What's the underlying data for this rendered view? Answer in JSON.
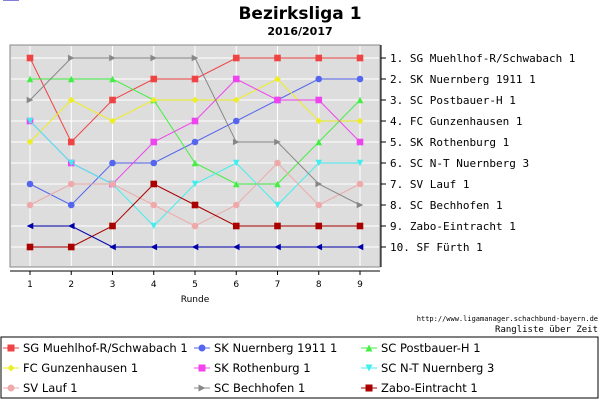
{
  "chart_data": {
    "type": "line",
    "title": "Bezirksliga 1",
    "subtitle": "2016/2017",
    "xlabel": "Runde",
    "ylabel": "",
    "x": [
      1,
      2,
      3,
      4,
      5,
      6,
      7,
      8,
      9
    ],
    "ylim": [
      10,
      1
    ],
    "grid": true,
    "legend_position": "bottom",
    "y_tick_labels": [
      "1. SG Muehlhof-R/Schwabach 1",
      "2. SK Nuernberg 1911 1",
      "3. SC Postbauer-H 1",
      "4. FC Gunzenhausen 1",
      "5. SK Rothenburg 1",
      "6. SC N-T Nuernberg 3",
      "7. SV Lauf 1",
      "8. SC Bechhofen 1",
      "9. Zabo-Eintracht 1",
      "10. SF Fürth 1"
    ],
    "series": [
      {
        "name": "SG Muehlhof-R/Schwabach 1",
        "color": "#ee4444",
        "marker": "square",
        "values": [
          1,
          5,
          3,
          2,
          2,
          1,
          1,
          1,
          1
        ]
      },
      {
        "name": "SK Nuernberg 1911 1",
        "color": "#5566ee",
        "marker": "circle",
        "values": [
          7,
          8,
          6,
          6,
          5,
          4,
          3,
          2,
          2
        ]
      },
      {
        "name": "SC Postbauer-H 1",
        "color": "#44ee44",
        "marker": "triangle-up",
        "values": [
          2,
          2,
          2,
          3,
          6,
          7,
          7,
          5,
          3
        ]
      },
      {
        "name": "FC Gunzenhausen 1",
        "color": "#eeee22",
        "marker": "diamond",
        "values": [
          5,
          3,
          4,
          3,
          3,
          3,
          2,
          4,
          4
        ]
      },
      {
        "name": "SK Rothenburg 1",
        "color": "#ee44ee",
        "marker": "square",
        "values": [
          4,
          6,
          7,
          5,
          4,
          2,
          3,
          3,
          5
        ]
      },
      {
        "name": "SC N-T Nuernberg 3",
        "color": "#44eeee",
        "marker": "triangle-down",
        "values": [
          4,
          6,
          7,
          9,
          7,
          6,
          8,
          6,
          6
        ]
      },
      {
        "name": "SV Lauf 1",
        "color": "#eeaaaa",
        "marker": "circle",
        "values": [
          8,
          7,
          7,
          8,
          9,
          8,
          6,
          8,
          7
        ]
      },
      {
        "name": "SC Bechhofen 1",
        "color": "#888888",
        "marker": "triangle-right",
        "values": [
          3,
          1,
          1,
          1,
          1,
          5,
          5,
          7,
          8
        ]
      },
      {
        "name": "Zabo-Eintracht 1",
        "color": "#aa0000",
        "marker": "square",
        "values": [
          10,
          10,
          9,
          7,
          8,
          9,
          9,
          9,
          9
        ]
      },
      {
        "name": "SF Fürth 1",
        "color": "#0000aa",
        "marker": "triangle-left",
        "values": [
          9,
          9,
          10,
          10,
          10,
          10,
          10,
          10,
          10
        ]
      }
    ]
  },
  "footer": {
    "url": "http://www.ligamanager.schachbund-bayern.de",
    "caption": "Rangliste über Zeit"
  }
}
